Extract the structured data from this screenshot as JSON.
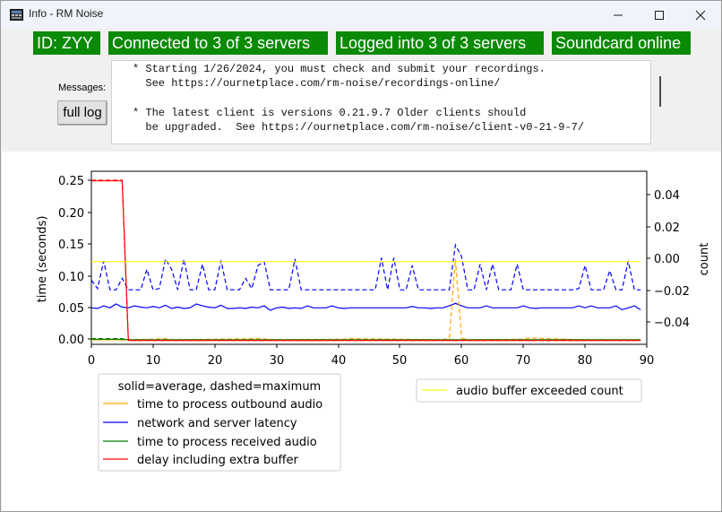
{
  "window": {
    "title": "Info - RM Noise"
  },
  "header": {
    "badges": [
      {
        "name": "id-badge",
        "text": "ID: ZYY"
      },
      {
        "name": "servers-connected-badge",
        "text": "Connected to 3 of 3 servers"
      },
      {
        "name": "servers-logged-badge",
        "text": "Logged into 3 of 3 servers"
      },
      {
        "name": "soundcard-badge",
        "text": "Soundcard online"
      }
    ],
    "badge_color": "#0a8a06"
  },
  "messages": {
    "label": "Messages:",
    "full_log_label": "full log",
    "lines": [
      "* Starting 1/26/2024, you must check and submit your recordings.",
      "  See https://ournetplace.com/rm-noise/recordings-online/",
      "",
      "* The latest client is versions 0.21.9.7 Older clients should",
      "  be upgraded.  See https://ournetplace.com/rm-noise/client-v0-21-9-7/"
    ]
  },
  "chart_data": {
    "type": "line",
    "xlabel": "",
    "ylabel": "time (seconds)",
    "y2label": "count",
    "xlim": [
      0,
      90
    ],
    "ylim": [
      -0.005,
      0.265
    ],
    "y2lim": [
      -0.053,
      0.058
    ],
    "xticks": [
      "0",
      "10",
      "20",
      "30",
      "40",
      "50",
      "60",
      "70",
      "80",
      "90"
    ],
    "yticks": [
      "0.00",
      "0.05",
      "0.10",
      "0.15",
      "0.20",
      "0.25"
    ],
    "y2ticks": [
      "0.04",
      "0.02",
      "0.00",
      "−0.02",
      "−0.04"
    ],
    "grid": false,
    "legend": {
      "title": "solid=average, dashed=maximum",
      "entries": [
        {
          "label": "time to process outbound audio",
          "color": "#ffa500"
        },
        {
          "label": "network and server latency",
          "color": "#0000ff"
        },
        {
          "label": "time to process received audio",
          "color": "#008000"
        },
        {
          "label": "delay including extra buffer",
          "color": "#ff0000"
        }
      ],
      "placement": "lower-left below axes"
    },
    "legend2": {
      "entries": [
        {
          "label": "audio buffer exceeded count",
          "color": "#ffff00"
        }
      ],
      "placement": "lower-right below axes"
    },
    "series": [
      {
        "name": "network and server latency",
        "style": "dashed",
        "axis": "left",
        "color": "#0000ff",
        "x": [
          0,
          1,
          2,
          3,
          4,
          5,
          6,
          7,
          8,
          9,
          10,
          11,
          12,
          13,
          14,
          15,
          16,
          17,
          18,
          19,
          20,
          21,
          22,
          23,
          24,
          25,
          26,
          27,
          28,
          29,
          30,
          31,
          32,
          33,
          34,
          35,
          36,
          37,
          38,
          39,
          40,
          41,
          42,
          43,
          44,
          45,
          46,
          47,
          48,
          49,
          50,
          51,
          52,
          53,
          54,
          55,
          56,
          57,
          58,
          59,
          60,
          61,
          62,
          63,
          64,
          65,
          66,
          67,
          68,
          69,
          70,
          71,
          72,
          73,
          74,
          75,
          76,
          77,
          78,
          79,
          80,
          81,
          82,
          83,
          84,
          85,
          86,
          87,
          88,
          89
        ],
        "values": [
          0.095,
          0.082,
          0.125,
          0.08,
          0.08,
          0.098,
          0.08,
          0.08,
          0.08,
          0.112,
          0.08,
          0.082,
          0.128,
          0.112,
          0.08,
          0.128,
          0.08,
          0.08,
          0.12,
          0.08,
          0.08,
          0.126,
          0.08,
          0.08,
          0.08,
          0.098,
          0.082,
          0.118,
          0.124,
          0.08,
          0.08,
          0.08,
          0.08,
          0.128,
          0.08,
          0.08,
          0.08,
          0.08,
          0.08,
          0.08,
          0.08,
          0.08,
          0.08,
          0.08,
          0.08,
          0.08,
          0.08,
          0.13,
          0.08,
          0.13,
          0.08,
          0.08,
          0.118,
          0.08,
          0.08,
          0.08,
          0.08,
          0.08,
          0.08,
          0.15,
          0.132,
          0.08,
          0.08,
          0.12,
          0.08,
          0.12,
          0.08,
          0.08,
          0.08,
          0.12,
          0.08,
          0.08,
          0.08,
          0.08,
          0.08,
          0.08,
          0.08,
          0.08,
          0.08,
          0.082,
          0.118,
          0.08,
          0.08,
          0.08,
          0.11,
          0.08,
          0.08,
          0.125,
          0.08,
          0.08
        ]
      },
      {
        "name": "network and server latency",
        "style": "solid",
        "axis": "left",
        "color": "#0000ff",
        "x": [
          0,
          1,
          2,
          3,
          4,
          5,
          6,
          7,
          8,
          9,
          10,
          11,
          12,
          13,
          14,
          15,
          16,
          17,
          18,
          19,
          20,
          21,
          22,
          23,
          24,
          25,
          26,
          27,
          28,
          29,
          30,
          31,
          32,
          33,
          34,
          35,
          36,
          37,
          38,
          39,
          40,
          41,
          42,
          43,
          44,
          45,
          46,
          47,
          48,
          49,
          50,
          51,
          52,
          53,
          54,
          55,
          56,
          57,
          58,
          59,
          60,
          61,
          62,
          63,
          64,
          65,
          66,
          67,
          68,
          69,
          70,
          71,
          72,
          73,
          74,
          75,
          76,
          77,
          78,
          79,
          80,
          81,
          82,
          83,
          84,
          85,
          86,
          87,
          88,
          89
        ],
        "values": [
          0.052,
          0.051,
          0.055,
          0.052,
          0.058,
          0.053,
          0.052,
          0.055,
          0.053,
          0.052,
          0.054,
          0.052,
          0.056,
          0.051,
          0.053,
          0.051,
          0.052,
          0.058,
          0.055,
          0.053,
          0.052,
          0.056,
          0.051,
          0.051,
          0.052,
          0.051,
          0.053,
          0.052,
          0.055,
          0.048,
          0.052,
          0.053,
          0.051,
          0.052,
          0.051,
          0.055,
          0.052,
          0.052,
          0.052,
          0.055,
          0.052,
          0.051,
          0.052,
          0.052,
          0.052,
          0.052,
          0.052,
          0.052,
          0.052,
          0.052,
          0.052,
          0.052,
          0.054,
          0.052,
          0.052,
          0.051,
          0.052,
          0.052,
          0.055,
          0.059,
          0.055,
          0.052,
          0.052,
          0.052,
          0.055,
          0.052,
          0.052,
          0.052,
          0.052,
          0.052,
          0.055,
          0.052,
          0.051,
          0.052,
          0.052,
          0.052,
          0.052,
          0.052,
          0.052,
          0.055,
          0.052,
          0.055,
          0.052,
          0.052,
          0.052,
          0.055,
          0.049,
          0.052,
          0.055,
          0.049
        ]
      },
      {
        "name": "time to process outbound audio",
        "style": "dashed",
        "axis": "left",
        "color": "#ffa500",
        "x": [
          0,
          5,
          10,
          12,
          13,
          20,
          27,
          30,
          41,
          42,
          57,
          58,
          59,
          60,
          61,
          70,
          71,
          80,
          89
        ],
        "values": [
          0.003,
          0.002,
          0.003,
          0.004,
          0.002,
          0.003,
          0.004,
          0.002,
          0.003,
          0.004,
          0.002,
          0.005,
          0.128,
          0.005,
          0.002,
          0.003,
          0.005,
          0.002,
          0.002
        ]
      },
      {
        "name": "time to process outbound audio",
        "style": "solid",
        "axis": "left",
        "color": "#ffa500",
        "x": [
          0,
          89
        ],
        "values": [
          0.002,
          0.002
        ]
      },
      {
        "name": "time to process received audio",
        "style": "dashed",
        "axis": "left",
        "color": "#008000",
        "x": [
          0,
          5,
          6,
          89
        ],
        "values": [
          0.004,
          0.004,
          0.002,
          0.002
        ]
      },
      {
        "name": "time to process received audio",
        "style": "solid",
        "axis": "left",
        "color": "#008000",
        "x": [
          0,
          5,
          6,
          89
        ],
        "values": [
          0.003,
          0.003,
          0.002,
          0.002
        ]
      },
      {
        "name": "delay including extra buffer",
        "style": "dashed",
        "axis": "left",
        "color": "#ff0000",
        "x": [
          0,
          5,
          6,
          89
        ],
        "values": [
          0.251,
          0.251,
          0.001,
          0.001
        ]
      },
      {
        "name": "delay including extra buffer",
        "style": "solid",
        "axis": "left",
        "color": "#ff0000",
        "x": [
          0,
          5,
          6,
          89
        ],
        "values": [
          0.25,
          0.25,
          0.001,
          0.001
        ]
      },
      {
        "name": "audio buffer exceeded count",
        "style": "solid",
        "axis": "right",
        "color": "#ffff00",
        "x": [
          0,
          89
        ],
        "values": [
          0,
          0
        ]
      }
    ]
  }
}
